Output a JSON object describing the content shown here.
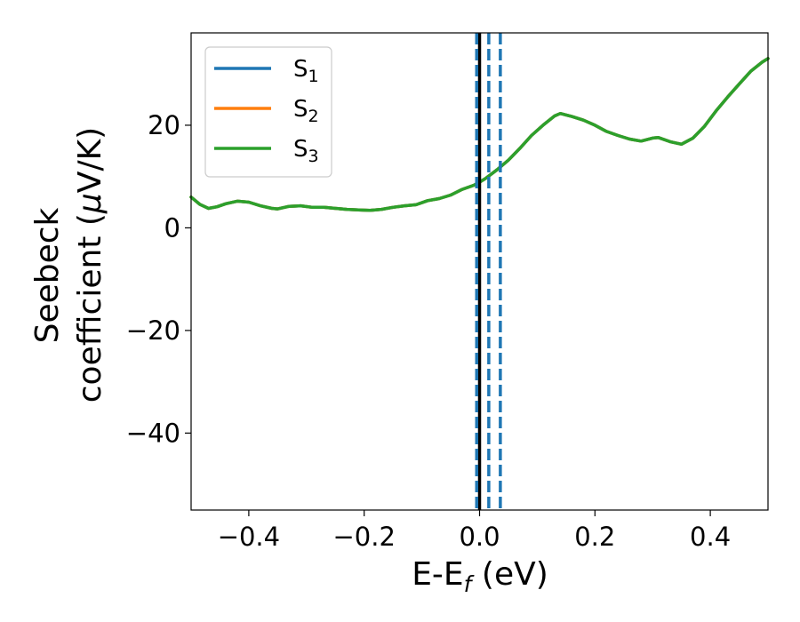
{
  "chart_data": {
    "type": "line",
    "xlabel": {
      "base": "E-E",
      "sub": "f",
      "suffix": " (eV)"
    },
    "ylabel": {
      "line1": "Seebeck",
      "line2_pre": "coefficient  (",
      "mu": "μ",
      "line2_post": "V/K)"
    },
    "xlim": [
      -0.5,
      0.5
    ],
    "ylim": [
      -55,
      38
    ],
    "xticks": [
      -0.4,
      -0.2,
      0.0,
      0.2,
      0.4
    ],
    "xtick_labels": [
      "−0.4",
      "−0.2",
      "0.0",
      "0.2",
      "0.4"
    ],
    "yticks": [
      -40,
      -20,
      0,
      20
    ],
    "ytick_labels": [
      "−40",
      "−20",
      "0",
      "20"
    ],
    "grid": false,
    "legend_position": "top-left",
    "series": [
      {
        "name": "S",
        "sub": "1",
        "color": "#1f77b4"
      },
      {
        "name": "S",
        "sub": "2",
        "color": "#ff7f0e"
      },
      {
        "name": "S",
        "sub": "3",
        "color": "#2ca02c"
      }
    ],
    "curve": {
      "x": [
        -0.5,
        -0.485,
        -0.47,
        -0.455,
        -0.44,
        -0.42,
        -0.4,
        -0.38,
        -0.36,
        -0.35,
        -0.33,
        -0.31,
        -0.29,
        -0.27,
        -0.25,
        -0.23,
        -0.21,
        -0.19,
        -0.17,
        -0.15,
        -0.13,
        -0.11,
        -0.09,
        -0.07,
        -0.05,
        -0.03,
        -0.01,
        0.0,
        0.01,
        0.03,
        0.05,
        0.07,
        0.09,
        0.11,
        0.13,
        0.14,
        0.16,
        0.18,
        0.2,
        0.22,
        0.24,
        0.26,
        0.28,
        0.3,
        0.31,
        0.33,
        0.35,
        0.37,
        0.39,
        0.41,
        0.43,
        0.45,
        0.47,
        0.49,
        0.5
      ],
      "y": [
        6.0,
        4.6,
        3.8,
        4.1,
        4.7,
        5.2,
        5.0,
        4.3,
        3.8,
        3.7,
        4.2,
        4.3,
        4.0,
        4.0,
        3.8,
        3.6,
        3.5,
        3.4,
        3.6,
        4.0,
        4.3,
        4.5,
        5.3,
        5.7,
        6.4,
        7.5,
        8.3,
        8.9,
        9.6,
        11.3,
        13.2,
        15.5,
        18.0,
        20.0,
        21.8,
        22.3,
        21.7,
        21.0,
        20.0,
        18.8,
        18.0,
        17.3,
        16.9,
        17.5,
        17.6,
        16.8,
        16.3,
        17.5,
        19.8,
        22.8,
        25.5,
        28.0,
        30.5,
        32.3,
        33.0
      ]
    },
    "vlines": [
      {
        "x": 0.0,
        "color": "#000000",
        "style": "solid"
      },
      {
        "x": -0.005,
        "color": "#1f77b4",
        "style": "dashed"
      },
      {
        "x": 0.016,
        "color": "#1f77b4",
        "style": "dashed"
      },
      {
        "x": 0.036,
        "color": "#1f77b4",
        "style": "dashed"
      }
    ]
  }
}
